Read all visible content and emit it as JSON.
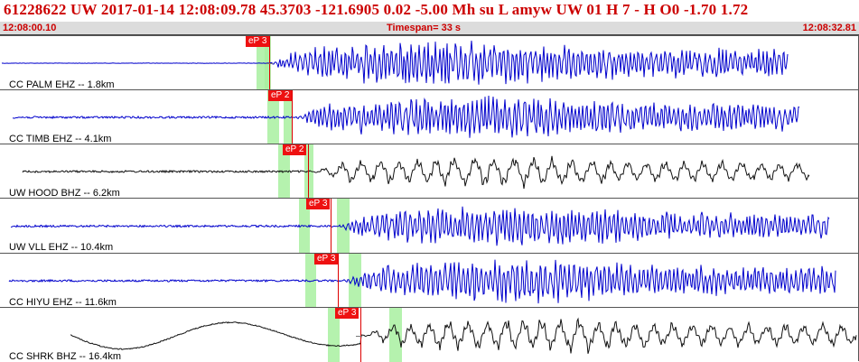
{
  "header": {
    "title": "61228622 UW 2017-01-14 12:08:09.78   45.3703 -121.6905   0.02 -5.00 Mh  su  L amyw     UW 01  H   7  -  H O0   -1.70  1.72"
  },
  "timebar": {
    "start": "12:08:00.10",
    "timespan": "Timespan=  33 s",
    "end": "12:08:32.81"
  },
  "colors": {
    "title": "#cc0000",
    "trace_blue": "#0000cc",
    "trace_black": "#111111",
    "pick": "#ee1111",
    "window": "#a8f0a0"
  },
  "channels": [
    {
      "label": "CC PALM EHZ -- 1.8km",
      "pick": "eP 3",
      "color": "blue",
      "onset_fraction": 0.33,
      "amplitude": 0.42
    },
    {
      "label": "CC TIMB EHZ -- 4.1km",
      "pick": "eP 2",
      "color": "blue",
      "onset_fraction": 0.36,
      "amplitude": 0.38
    },
    {
      "label": "UW HOOD BHZ -- 6.2km",
      "pick": "eP 2",
      "color": "black",
      "onset_fraction": 0.38,
      "amplitude": 0.3
    },
    {
      "label": "UW VLL EHZ -- 10.4km",
      "pick": "eP 3",
      "color": "blue",
      "onset_fraction": 0.41,
      "amplitude": 0.36
    },
    {
      "label": "CC HIYU EHZ -- 11.6km",
      "pick": "eP 3",
      "color": "blue",
      "onset_fraction": 0.42,
      "amplitude": 0.4
    },
    {
      "label": "CC SHRK BHZ -- 16.4km",
      "pick": "eP 3",
      "color": "black",
      "onset_fraction": 0.46,
      "amplitude": 0.34
    }
  ]
}
